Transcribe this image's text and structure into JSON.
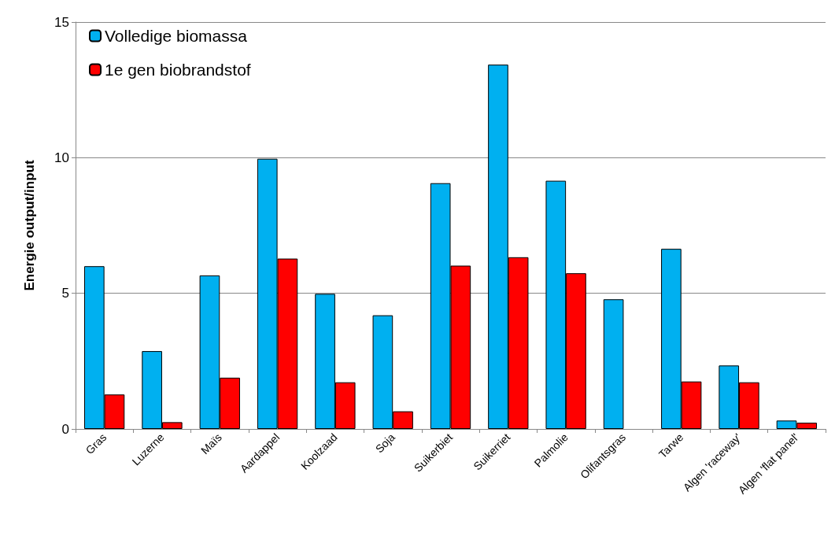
{
  "chart_data": {
    "type": "bar",
    "ylabel": "Energie output/input",
    "categories": [
      "Gras",
      "Luzerne",
      "Maïs",
      "Aardappel",
      "Koolzaad",
      "Soja",
      "Suikerbiet",
      "Suikerriet",
      "Palmolie",
      "Olifantsgras",
      "Tarwe",
      "Algen 'raceway'",
      "Algen 'flat panel'"
    ],
    "series": [
      {
        "name": "Volledige biomassa",
        "color": "#00b0f0",
        "values": [
          6.0,
          2.87,
          5.66,
          9.96,
          4.98,
          4.19,
          9.06,
          13.43,
          9.15,
          4.78,
          6.64,
          2.34,
          0.31
        ]
      },
      {
        "name": "1e gen biobrandstof",
        "color": "#ff0000",
        "values": [
          1.27,
          0.25,
          1.89,
          6.28,
          1.72,
          0.65,
          6.02,
          6.33,
          5.74,
          null,
          1.75,
          1.72,
          0.23
        ]
      }
    ],
    "ylim": [
      0,
      15
    ],
    "yticks": [
      0,
      5,
      10,
      15
    ],
    "grid": "y",
    "legend": "top left"
  }
}
